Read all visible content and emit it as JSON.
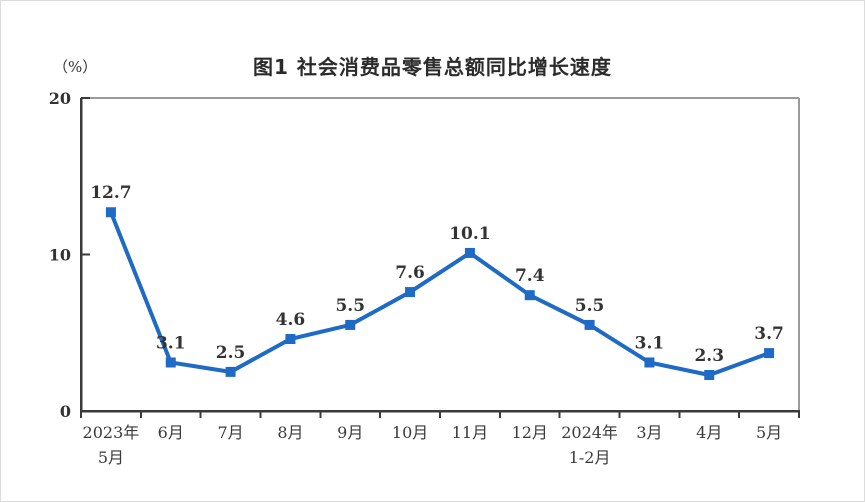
{
  "figure": {
    "title": "图1 社会消费品零售总额同比增长速度",
    "unit_label": "（%）"
  },
  "chart_data": {
    "type": "line",
    "title": "图1 社会消费品零售总额同比增长速度",
    "unit_label": "（%）",
    "categories": [
      "2023年\n5月",
      "6月",
      "7月",
      "8月",
      "9月",
      "10月",
      "11月",
      "12月",
      "2024年\n1-2月",
      "3月",
      "4月",
      "5月"
    ],
    "values": [
      12.7,
      3.1,
      2.5,
      4.6,
      5.5,
      7.6,
      10.1,
      7.4,
      5.5,
      3.1,
      2.3,
      3.7
    ],
    "xlabel": "",
    "ylabel": "（%）",
    "ylim": [
      0,
      20
    ],
    "yticks": [
      0,
      10,
      20
    ],
    "grid": false,
    "legend": "none",
    "marker": "square",
    "line_color": "#1e6ac4",
    "marker_color": "#1e6ac4",
    "label_color": "#333333",
    "axis_color": "#3a3a3a",
    "frame_color": "#9a9a9a"
  }
}
